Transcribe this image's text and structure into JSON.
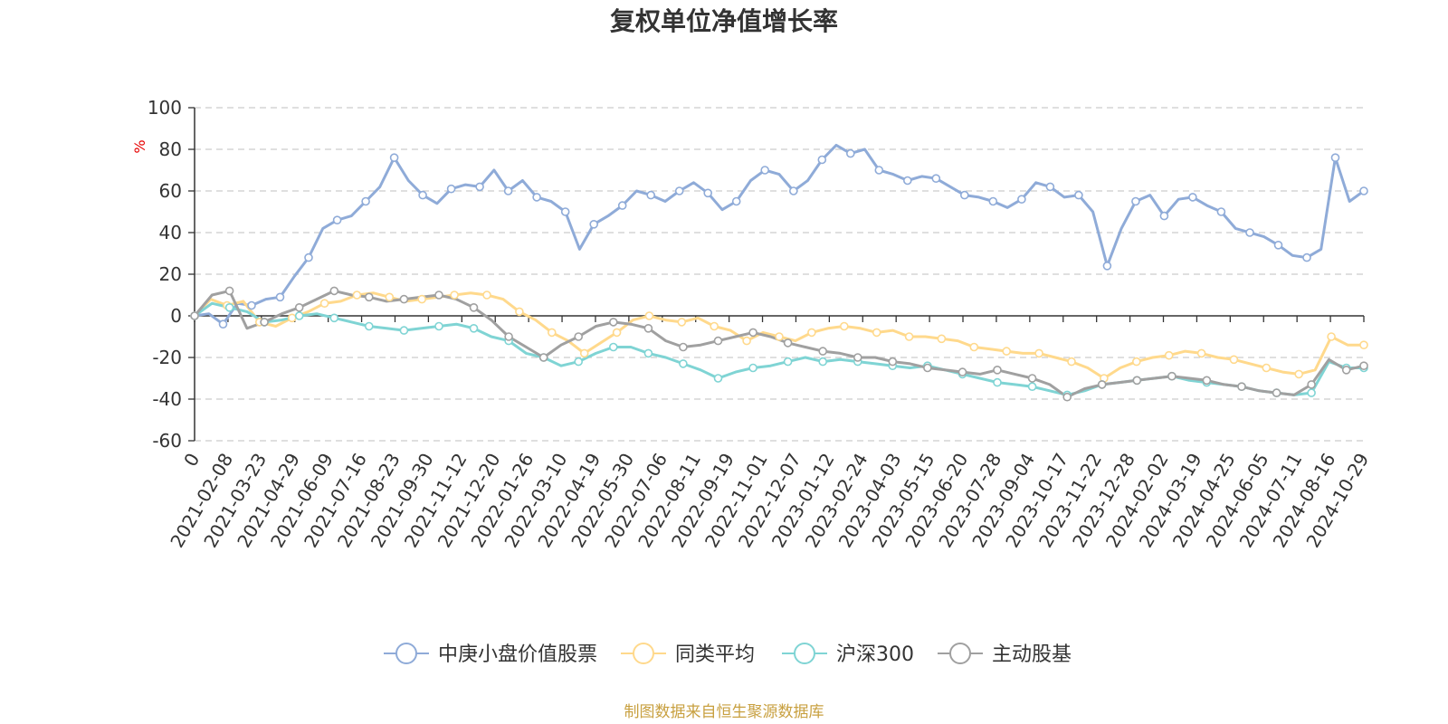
{
  "chart_data": {
    "type": "line",
    "title": "复权单位净值增长率",
    "ylabel": "%",
    "ylim": [
      -60,
      100
    ],
    "yticks": [
      100,
      80,
      60,
      40,
      20,
      0,
      -20,
      -40,
      -60
    ],
    "xticks": [
      "0",
      "2021-02-08",
      "2021-03-23",
      "2021-04-29",
      "2021-06-09",
      "2021-07-16",
      "2021-08-23",
      "2021-09-30",
      "2021-11-12",
      "2021-12-20",
      "2022-01-26",
      "2022-03-10",
      "2022-04-19",
      "2022-05-30",
      "2022-07-06",
      "2022-08-11",
      "2022-09-19",
      "2022-11-01",
      "2022-12-07",
      "2023-01-12",
      "2023-02-24",
      "2023-04-03",
      "2023-05-15",
      "2023-06-20",
      "2023-07-28",
      "2023-09-04",
      "2023-10-17",
      "2023-11-22",
      "2023-12-28",
      "2024-02-02",
      "2024-03-19",
      "2024-04-25",
      "2024-06-05",
      "2024-07-11",
      "2024-08-16",
      "2024-10-29"
    ],
    "grid": "dashed horizontal",
    "legend_position": "bottom-center",
    "series": [
      {
        "name": "中庚小盘价值股票",
        "color": "#8fabd8",
        "values": [
          0,
          1,
          -4,
          6,
          5,
          8,
          9,
          19,
          28,
          42,
          46,
          48,
          55,
          62,
          76,
          65,
          58,
          54,
          61,
          63,
          62,
          70,
          60,
          65,
          57,
          55,
          50,
          32,
          44,
          48,
          53,
          60,
          58,
          55,
          60,
          64,
          59,
          51,
          55,
          65,
          70,
          68,
          60,
          65,
          75,
          82,
          78,
          80,
          70,
          68,
          65,
          67,
          66,
          62,
          58,
          57,
          55,
          52,
          56,
          64,
          62,
          57,
          58,
          50,
          24,
          42,
          55,
          58,
          48,
          56,
          57,
          53,
          50,
          42,
          40,
          38,
          34,
          29,
          28,
          32,
          76,
          55,
          60
        ]
      },
      {
        "name": "同类平均",
        "color": "#ffd98c",
        "values": [
          0,
          8,
          5,
          7,
          -3,
          -5,
          -1,
          2,
          6,
          7,
          10,
          11,
          9,
          7,
          8,
          9,
          10,
          11,
          10,
          8,
          2,
          -2,
          -8,
          -12,
          -18,
          -13,
          -8,
          -2,
          0,
          -2,
          -3,
          -1,
          -5,
          -7,
          -12,
          -8,
          -10,
          -12,
          -8,
          -6,
          -5,
          -6,
          -8,
          -7,
          -10,
          -10,
          -11,
          -12,
          -15,
          -16,
          -17,
          -18,
          -18,
          -20,
          -22,
          -25,
          -30,
          -25,
          -22,
          -20,
          -19,
          -17,
          -18,
          -20,
          -21,
          -23,
          -25,
          -27,
          -28,
          -26,
          -10,
          -14,
          -14
        ]
      },
      {
        "name": "沪深300",
        "color": "#7fd4d4",
        "values": [
          0,
          6,
          4,
          2,
          -3,
          -2,
          0,
          1,
          -1,
          -3,
          -5,
          -6,
          -7,
          -6,
          -5,
          -4,
          -6,
          -10,
          -12,
          -18,
          -20,
          -24,
          -22,
          -18,
          -15,
          -15,
          -18,
          -20,
          -23,
          -26,
          -30,
          -27,
          -25,
          -24,
          -22,
          -20,
          -22,
          -21,
          -22,
          -23,
          -24,
          -25,
          -24,
          -26,
          -28,
          -30,
          -32,
          -33,
          -34,
          -36,
          -38,
          -36,
          -33,
          -32,
          -31,
          -30,
          -29,
          -31,
          -32,
          -33,
          -34,
          -36,
          -37,
          -38,
          -37,
          -22,
          -25,
          -25
        ]
      },
      {
        "name": "主动股基",
        "color": "#a0a0a0",
        "values": [
          0,
          10,
          12,
          -6,
          -3,
          1,
          4,
          8,
          12,
          10,
          9,
          7,
          8,
          9,
          10,
          8,
          4,
          -2,
          -10,
          -15,
          -20,
          -14,
          -10,
          -5,
          -3,
          -4,
          -6,
          -12,
          -15,
          -14,
          -12,
          -10,
          -8,
          -10,
          -13,
          -15,
          -17,
          -18,
          -20,
          -20,
          -22,
          -23,
          -25,
          -26,
          -27,
          -28,
          -26,
          -28,
          -30,
          -33,
          -39,
          -35,
          -33,
          -32,
          -31,
          -30,
          -29,
          -30,
          -31,
          -33,
          -34,
          -36,
          -37,
          -38,
          -33,
          -21,
          -26,
          -24
        ]
      }
    ],
    "source": "制图数据来自恒生聚源数据库"
  }
}
